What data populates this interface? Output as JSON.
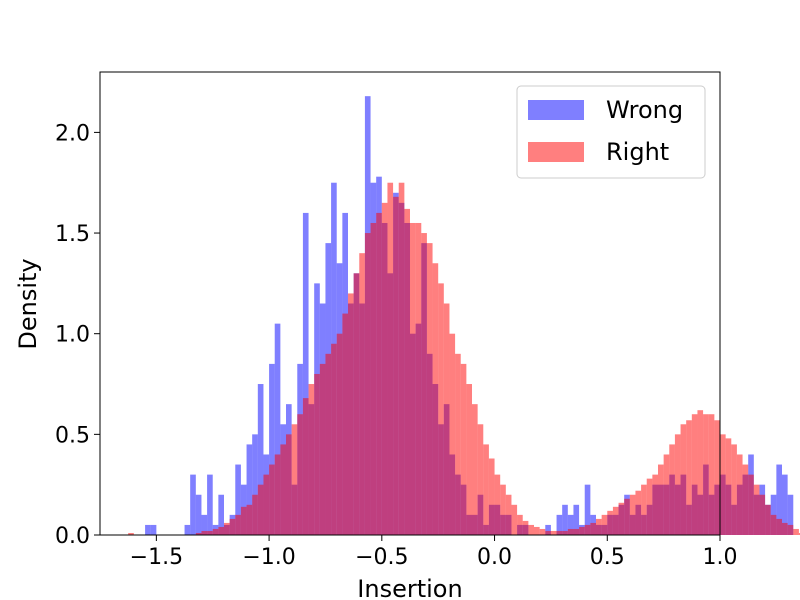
{
  "chart_data": {
    "type": "histogram",
    "xlabel": "Insertion",
    "ylabel": "Density",
    "xlim": [
      -1.75,
      1.0
    ],
    "ylim": [
      0.0,
      2.3
    ],
    "xticks": [
      -1.5,
      -1.0,
      -0.5,
      0.0,
      0.5,
      1.0
    ],
    "xtick_labels": [
      "−1.5",
      "−1.0",
      "−0.5",
      "0.0",
      "0.5",
      "1.0"
    ],
    "yticks": [
      0.0,
      0.5,
      1.0,
      1.5,
      2.0
    ],
    "ytick_labels": [
      "0.0",
      "0.5",
      "1.0",
      "1.5",
      "2.0"
    ],
    "legend": {
      "position": "top-right"
    },
    "bin_width": 0.025,
    "series": [
      {
        "name": "Wrong",
        "color": "#0000ff",
        "opacity": 0.5,
        "bin_start": -1.6,
        "values": [
          0,
          0,
          0.05,
          0.05,
          0,
          0,
          0,
          0,
          0,
          0.05,
          0.3,
          0.2,
          0.1,
          0.3,
          0.05,
          0.2,
          0.05,
          0.1,
          0.35,
          0.25,
          0.45,
          0.5,
          0.75,
          0.4,
          0.85,
          1.05,
          0.55,
          0.65,
          0.25,
          0.85,
          1.6,
          0.65,
          1.25,
          1.15,
          1.45,
          1.75,
          1.35,
          1.6,
          1.15,
          1.3,
          1.15,
          2.18,
          1.75,
          1.78,
          1.55,
          1.3,
          1.7,
          1.65,
          1.55,
          1.0,
          1.05,
          1.45,
          0.9,
          0.75,
          0.55,
          0.65,
          0.4,
          0.3,
          0.25,
          0.1,
          0.1,
          0.2,
          0.05,
          0.15,
          0.15,
          0.1,
          0.1,
          0,
          0.05,
          0.05,
          0,
          0,
          0,
          0.05,
          0,
          0.1,
          0.15,
          0.1,
          0.15,
          0.05,
          0.25,
          0.1,
          0.05,
          0.05,
          0.1,
          0.1,
          0.15,
          0.2,
          0.1,
          0.15,
          0.1,
          0.15,
          0.25,
          0.25,
          0.25,
          0.3,
          0.25,
          0.3,
          0.15,
          0.25,
          0.2,
          0.35,
          0.2,
          0.25,
          0.3,
          0.25,
          0.15,
          0.25,
          0.3,
          0.4,
          0.2,
          0.25,
          0.15,
          0.2,
          0.35,
          0.3,
          0.2,
          0,
          0,
          0,
          0
        ]
      },
      {
        "name": "Right",
        "color": "#ff0000",
        "opacity": 0.5,
        "bin_start": -1.625,
        "values": [
          0.01,
          0,
          0,
          0,
          0,
          0,
          0,
          0,
          0,
          0,
          0,
          0,
          0.01,
          0.02,
          0.02,
          0.03,
          0.04,
          0.06,
          0.08,
          0.1,
          0.14,
          0.15,
          0.2,
          0.25,
          0.3,
          0.35,
          0.4,
          0.45,
          0.5,
          0.55,
          0.6,
          0.68,
          0.75,
          0.8,
          0.85,
          0.9,
          0.95,
          1.0,
          1.1,
          1.2,
          1.3,
          1.4,
          1.5,
          1.55,
          1.6,
          1.65,
          1.75,
          1.68,
          1.75,
          1.62,
          1.55,
          1.55,
          1.5,
          1.45,
          1.35,
          1.25,
          1.15,
          1.0,
          0.9,
          0.85,
          0.75,
          0.65,
          0.55,
          0.45,
          0.38,
          0.3,
          0.25,
          0.2,
          0.15,
          0.1,
          0.07,
          0.05,
          0.04,
          0.03,
          0.02,
          0.02,
          0.02,
          0.02,
          0.03,
          0.03,
          0.04,
          0.05,
          0.06,
          0.08,
          0.1,
          0.12,
          0.14,
          0.16,
          0.18,
          0.2,
          0.22,
          0.25,
          0.28,
          0.3,
          0.35,
          0.4,
          0.45,
          0.5,
          0.55,
          0.57,
          0.6,
          0.62,
          0.6,
          0.6,
          0.57,
          0.5,
          0.48,
          0.45,
          0.4,
          0.35,
          0.3,
          0.25,
          0.2,
          0.15,
          0.1,
          0.08,
          0.06,
          0.05,
          0.03,
          0.01,
          0.01
        ]
      }
    ]
  }
}
